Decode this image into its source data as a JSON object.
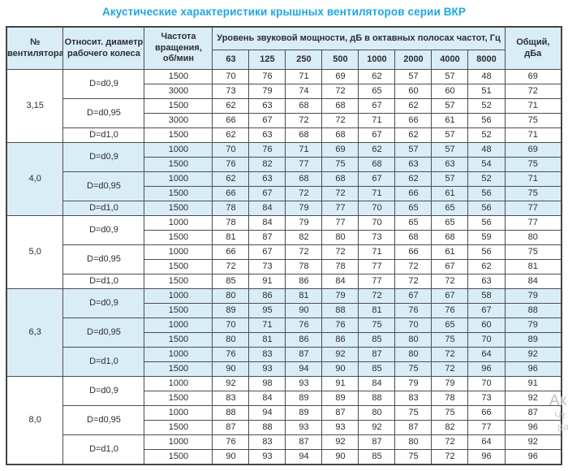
{
  "title": "Акустические характеристики крышных вентиляторов серии ВКР",
  "colors": {
    "accent": "#1ea7e0",
    "header_bg": "#d9edf7",
    "group_shaded_bg": "#d9edf7",
    "border": "#4d4d4d",
    "text": "#2d2d2d"
  },
  "table": {
    "headers": {
      "fan_number": "№\nвентилятора",
      "diameter": "Относит. диаметр\nрабочего колеса",
      "speed": "Частота\nвращения,\nоб/мин",
      "spl_group": "Уровень звуковой мощности, дБ в октавных полосах частот, Гц",
      "frequencies": [
        "63",
        "125",
        "250",
        "500",
        "1000",
        "2000",
        "4000",
        "8000"
      ],
      "total": "Общий,\nдБа"
    },
    "groups": [
      {
        "fan": "3,15",
        "shaded": false,
        "diameters": [
          {
            "label": "D=d0,9",
            "rows": [
              {
                "speed": "1500",
                "values": [
                  70,
                  76,
                  71,
                  69,
                  62,
                  57,
                  57,
                  48
                ],
                "total": 69
              },
              {
                "speed": "3000",
                "values": [
                  73,
                  79,
                  74,
                  72,
                  65,
                  60,
                  60,
                  51
                ],
                "total": 72
              }
            ]
          },
          {
            "label": "D=d0,95",
            "rows": [
              {
                "speed": "1500",
                "values": [
                  62,
                  63,
                  68,
                  68,
                  67,
                  62,
                  57,
                  52
                ],
                "total": 71
              },
              {
                "speed": "3000",
                "values": [
                  66,
                  67,
                  72,
                  72,
                  71,
                  66,
                  61,
                  56
                ],
                "total": 75
              }
            ]
          },
          {
            "label": "D=d1,0",
            "rows": [
              {
                "speed": "1500",
                "values": [
                  62,
                  63,
                  68,
                  68,
                  67,
                  62,
                  57,
                  52
                ],
                "total": 71
              }
            ]
          }
        ]
      },
      {
        "fan": "4,0",
        "shaded": true,
        "diameters": [
          {
            "label": "D=d0,9",
            "rows": [
              {
                "speed": "1000",
                "values": [
                  70,
                  76,
                  71,
                  69,
                  62,
                  57,
                  57,
                  48
                ],
                "total": 69
              },
              {
                "speed": "1500",
                "values": [
                  76,
                  82,
                  77,
                  75,
                  68,
                  63,
                  63,
                  54
                ],
                "total": 75
              }
            ]
          },
          {
            "label": "D=d0,95",
            "rows": [
              {
                "speed": "1000",
                "values": [
                  62,
                  63,
                  68,
                  68,
                  67,
                  62,
                  57,
                  52
                ],
                "total": 71
              },
              {
                "speed": "1500",
                "values": [
                  66,
                  67,
                  72,
                  72,
                  71,
                  66,
                  61,
                  56
                ],
                "total": 75
              }
            ]
          },
          {
            "label": "D=d1,0",
            "rows": [
              {
                "speed": "1500",
                "values": [
                  78,
                  84,
                  79,
                  77,
                  70,
                  65,
                  65,
                  56
                ],
                "total": 77
              }
            ]
          }
        ]
      },
      {
        "fan": "5,0",
        "shaded": false,
        "diameters": [
          {
            "label": "D=d0,9",
            "rows": [
              {
                "speed": "1000",
                "values": [
                  78,
                  84,
                  79,
                  77,
                  70,
                  65,
                  65,
                  56
                ],
                "total": 77
              },
              {
                "speed": "1500",
                "values": [
                  81,
                  87,
                  82,
                  80,
                  73,
                  68,
                  68,
                  59
                ],
                "total": 80
              }
            ]
          },
          {
            "label": "D=d0,95",
            "rows": [
              {
                "speed": "1000",
                "values": [
                  66,
                  67,
                  72,
                  72,
                  71,
                  66,
                  61,
                  56
                ],
                "total": 75
              },
              {
                "speed": "1500",
                "values": [
                  72,
                  73,
                  78,
                  78,
                  77,
                  72,
                  67,
                  62
                ],
                "total": 81
              }
            ]
          },
          {
            "label": "D=d1,0",
            "rows": [
              {
                "speed": "1500",
                "values": [
                  85,
                  91,
                  86,
                  84,
                  77,
                  72,
                  72,
                  63
                ],
                "total": 84
              }
            ]
          }
        ]
      },
      {
        "fan": "6,3",
        "shaded": true,
        "diameters": [
          {
            "label": "D=d0,9",
            "rows": [
              {
                "speed": "1000",
                "values": [
                  80,
                  86,
                  81,
                  79,
                  72,
                  67,
                  67,
                  58
                ],
                "total": 79
              },
              {
                "speed": "1500",
                "values": [
                  89,
                  95,
                  90,
                  88,
                  81,
                  76,
                  76,
                  67
                ],
                "total": 88
              }
            ]
          },
          {
            "label": "D=d0,95",
            "rows": [
              {
                "speed": "1000",
                "values": [
                  70,
                  71,
                  76,
                  76,
                  75,
                  70,
                  65,
                  60
                ],
                "total": 79
              },
              {
                "speed": "1500",
                "values": [
                  80,
                  81,
                  86,
                  86,
                  85,
                  80,
                  75,
                  70
                ],
                "total": 89
              }
            ]
          },
          {
            "label": "D=d1,0",
            "rows": [
              {
                "speed": "1000",
                "values": [
                  76,
                  83,
                  87,
                  92,
                  87,
                  80,
                  72,
                  64
                ],
                "total": 92
              },
              {
                "speed": "1500",
                "values": [
                  90,
                  93,
                  94,
                  90,
                  85,
                  75,
                  72,
                  96
                ],
                "total": 96
              }
            ]
          }
        ]
      },
      {
        "fan": "8,0",
        "shaded": false,
        "diameters": [
          {
            "label": "D=d0,9",
            "rows": [
              {
                "speed": "1000",
                "values": [
                  92,
                  98,
                  93,
                  91,
                  84,
                  79,
                  79,
                  70
                ],
                "total": 91
              },
              {
                "speed": "1500",
                "values": [
                  83,
                  84,
                  89,
                  89,
                  88,
                  83,
                  78,
                  73
                ],
                "total": 92
              }
            ]
          },
          {
            "label": "D=d0,95",
            "rows": [
              {
                "speed": "1000",
                "values": [
                  88,
                  94,
                  89,
                  87,
                  80,
                  75,
                  75,
                  66
                ],
                "total": 87
              },
              {
                "speed": "1500",
                "values": [
                  87,
                  88,
                  93,
                  93,
                  92,
                  87,
                  82,
                  77
                ],
                "total": 96
              }
            ]
          },
          {
            "label": "D=d1,0",
            "rows": [
              {
                "speed": "1000",
                "values": [
                  76,
                  83,
                  87,
                  92,
                  87,
                  80,
                  72,
                  64
                ],
                "total": 92
              },
              {
                "speed": "1500",
                "values": [
                  90,
                  93,
                  94,
                  90,
                  85,
                  75,
                  72,
                  96
                ],
                "total": 96
              }
            ]
          }
        ]
      }
    ]
  },
  "watermark": {
    "fragments": [
      "Ак",
      "Чт",
      "ра"
    ]
  }
}
